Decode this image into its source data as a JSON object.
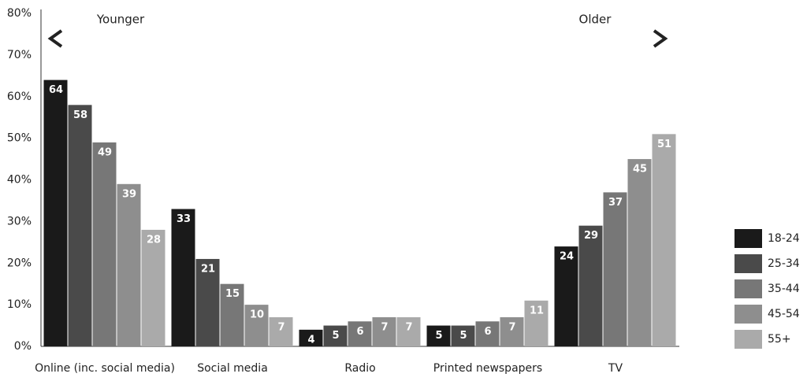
{
  "chart_data": {
    "type": "bar",
    "annotations": [
      "Younger",
      "Older"
    ],
    "categories": [
      "Online (inc. social media)",
      "Social media",
      "Radio",
      "Printed newspapers",
      "TV"
    ],
    "series": [
      {
        "name": "18-24",
        "color": "#1a1a1a",
        "values": [
          64,
          33,
          4,
          5,
          24
        ]
      },
      {
        "name": "25-34",
        "color": "#4a4a4a",
        "values": [
          58,
          21,
          5,
          5,
          29
        ]
      },
      {
        "name": "35-44",
        "color": "#777777",
        "values": [
          49,
          15,
          6,
          6,
          37
        ]
      },
      {
        "name": "45-54",
        "color": "#8e8e8e",
        "values": [
          39,
          10,
          7,
          7,
          45
        ]
      },
      {
        "name": "55+",
        "color": "#aaaaaa",
        "values": [
          28,
          7,
          7,
          11,
          51
        ]
      }
    ],
    "ylim": [
      0,
      80
    ],
    "yticks": [
      {
        "value": 0,
        "label": "0%"
      },
      {
        "value": 10,
        "label": "10%"
      },
      {
        "value": 20,
        "label": "20%"
      },
      {
        "value": 30,
        "label": "30%"
      },
      {
        "value": 40,
        "label": "40%"
      },
      {
        "value": 50,
        "label": "50%"
      },
      {
        "value": 60,
        "label": "60%"
      },
      {
        "value": 70,
        "label": "70%"
      },
      {
        "value": 80,
        "label": "80%"
      }
    ],
    "grid": false,
    "legend": "right"
  }
}
